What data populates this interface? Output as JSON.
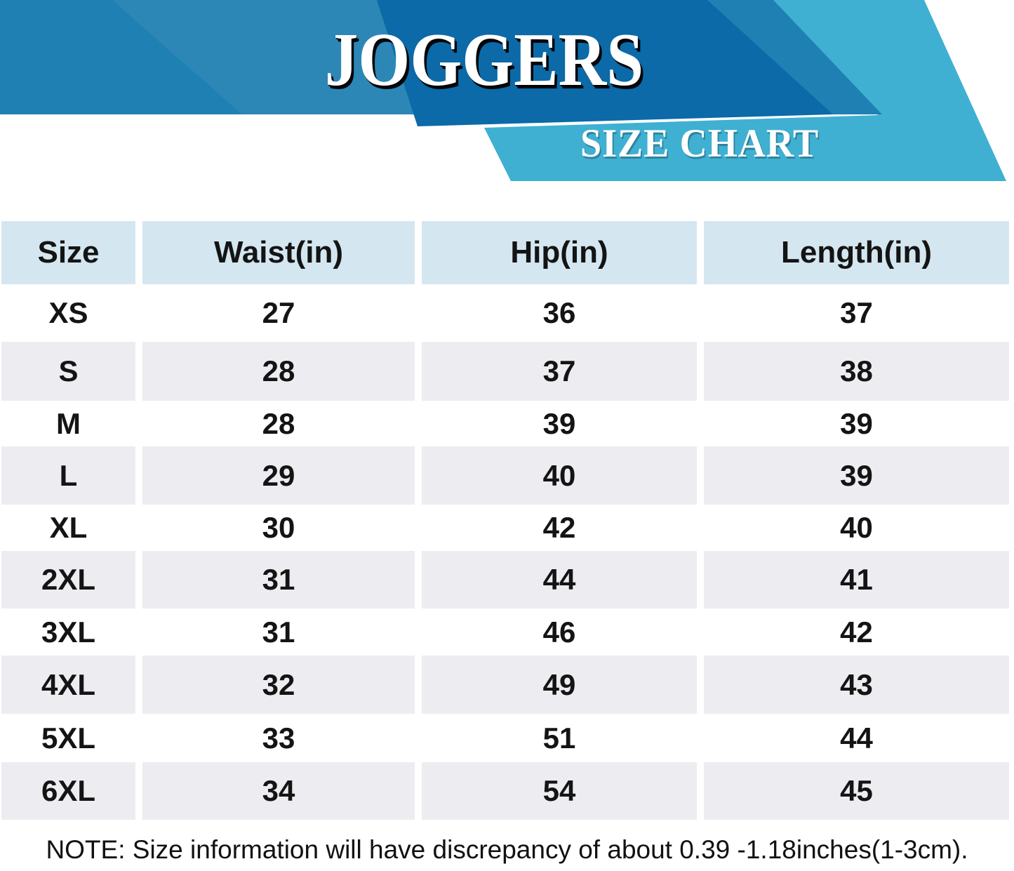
{
  "chart_data": {
    "type": "table",
    "title": "JOGGERS",
    "subtitle": "SIZE CHART",
    "columns": [
      "Size",
      "Waist(in)",
      "Hip(in)",
      "Length(in)"
    ],
    "rows": [
      [
        "XS",
        "27",
        "36",
        "37"
      ],
      [
        "S",
        "28",
        "37",
        "38"
      ],
      [
        "M",
        "28",
        "39",
        "39"
      ],
      [
        "L",
        "29",
        "40",
        "39"
      ],
      [
        "XL",
        "30",
        "42",
        "40"
      ],
      [
        "2XL",
        "31",
        "44",
        "41"
      ],
      [
        "3XL",
        "31",
        "46",
        "42"
      ],
      [
        "4XL",
        "32",
        "49",
        "43"
      ],
      [
        "5XL",
        "33",
        "51",
        "44"
      ],
      [
        "6XL",
        "34",
        "54",
        "45"
      ]
    ],
    "note": "NOTE: Size information will have discrepancy of about 0.39 -1.18inches(1-3cm)."
  },
  "colors": {
    "banner_medium_blue": "#1F80B3",
    "banner_dark_blue": "#0B6AA7",
    "banner_cyan": "#3FB0D2",
    "header_cell_bg": "#D4E7F1",
    "stripe_cell_bg": "#EDEDF1",
    "text": "#141414",
    "title_text": "#FFFFFF"
  }
}
